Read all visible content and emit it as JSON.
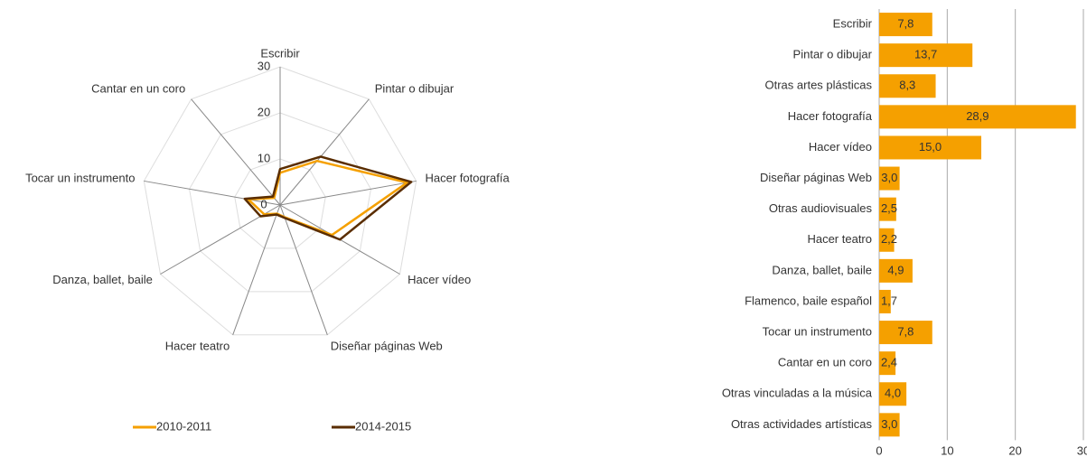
{
  "chart_data": [
    {
      "type": "radar",
      "categories": [
        "Escribir",
        "Pintar o dibujar",
        "Hacer fotografía",
        "Hacer vídeo",
        "Diseñar páginas Web",
        "Hacer teatro",
        "Danza, ballet, baile",
        "Tocar un instrumento",
        "Cantar en un coro"
      ],
      "series": [
        {
          "name": "2010-2011",
          "color": "#f5a000",
          "values": [
            7,
            12.5,
            28,
            13,
            2.8,
            2,
            4,
            7,
            2
          ]
        },
        {
          "name": "2014-2015",
          "color": "#5a2d00",
          "values": [
            7.8,
            13.7,
            28.9,
            15,
            3,
            2.2,
            4.9,
            7.8,
            2.4
          ]
        }
      ],
      "ylim": [
        0,
        30
      ],
      "yticks": [
        0,
        10,
        20,
        30
      ],
      "grid": true,
      "legend": "bottom"
    },
    {
      "type": "hbar",
      "categories": [
        "Escribir",
        "Pintar o dibujar",
        "Otras artes plásticas",
        "Hacer fotografía",
        "Hacer vídeo",
        "Diseñar páginas Web",
        "Otras audiovisuales",
        "Hacer teatro",
        "Danza, ballet, baile",
        "Flamenco, baile español",
        "Tocar un instrumento",
        "Cantar en un coro",
        "Otras vinculadas a la música",
        "Otras actividades artísticas"
      ],
      "values": [
        7.8,
        13.7,
        8.3,
        28.9,
        15.0,
        3.0,
        2.5,
        2.2,
        4.9,
        1.7,
        7.8,
        2.4,
        4.0,
        3.0
      ],
      "value_labels": [
        "7,8",
        "13,7",
        "8,3",
        "28,9",
        "15,0",
        "3,0",
        "2,5",
        "2,2",
        "4,9",
        "1,7",
        "7,8",
        "2,4",
        "4,0",
        "3,0"
      ],
      "color": "#f5a000",
      "xlim": [
        0,
        30
      ],
      "xticks": [
        0,
        10,
        20,
        30
      ],
      "grid": true
    }
  ]
}
